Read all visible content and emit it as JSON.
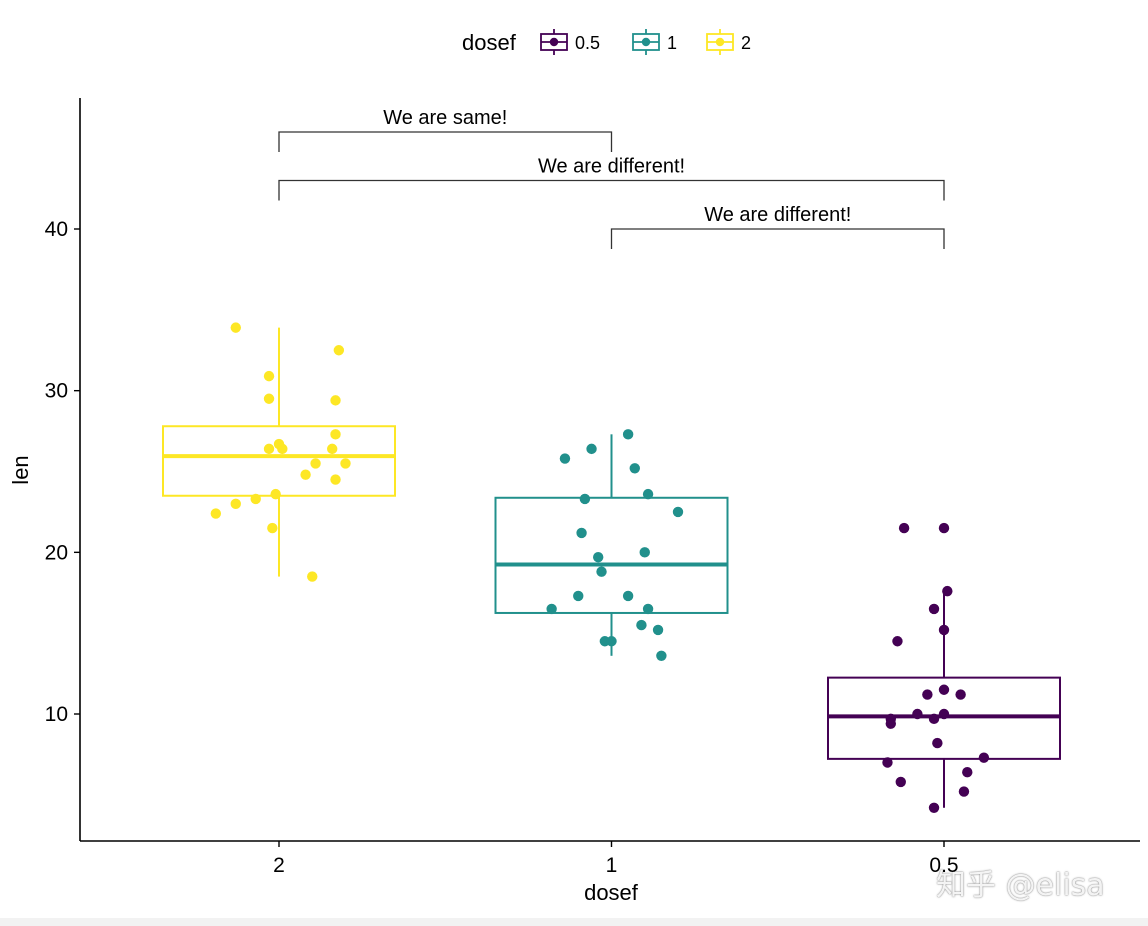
{
  "watermark": "知乎 @elisa",
  "chart_data": {
    "type": "box",
    "title": "",
    "xlabel": "dosef",
    "ylabel": "len",
    "categories": [
      "2",
      "1",
      "0.5"
    ],
    "ylim": [
      3,
      48
    ],
    "yticks": [
      10,
      20,
      30,
      40
    ],
    "grid": false,
    "legend": {
      "title": "dosef",
      "position": "top",
      "entries": [
        {
          "label": "0.5",
          "color": "#440154"
        },
        {
          "label": "1",
          "color": "#21908C"
        },
        {
          "label": "2",
          "color": "#FDE725"
        }
      ]
    },
    "boxes": [
      {
        "category": "2",
        "color": "#FDE725",
        "lower_whisker": 18.5,
        "q1": 23.5,
        "median": 25.95,
        "q3": 27.8,
        "upper_whisker": 33.9,
        "points": [
          [
            -0.13,
            33.9
          ],
          [
            -0.03,
            30.9
          ],
          [
            0.18,
            32.5
          ],
          [
            -0.03,
            29.5
          ],
          [
            0.17,
            29.4
          ],
          [
            0.17,
            27.3
          ],
          [
            0.0,
            26.7
          ],
          [
            -0.03,
            26.4
          ],
          [
            0.01,
            26.4
          ],
          [
            0.16,
            26.4
          ],
          [
            0.11,
            25.5
          ],
          [
            0.2,
            25.5
          ],
          [
            0.08,
            24.8
          ],
          [
            0.17,
            24.5
          ],
          [
            -0.01,
            23.6
          ],
          [
            -0.07,
            23.3
          ],
          [
            -0.13,
            23.0
          ],
          [
            -0.19,
            22.4
          ],
          [
            -0.02,
            21.5
          ],
          [
            0.1,
            18.5
          ]
        ]
      },
      {
        "category": "1",
        "color": "#21908C",
        "lower_whisker": 13.6,
        "q1": 16.25,
        "median": 19.25,
        "q3": 23.375,
        "upper_whisker": 27.3,
        "points": [
          [
            0.05,
            27.3
          ],
          [
            -0.06,
            26.4
          ],
          [
            -0.14,
            25.8
          ],
          [
            0.07,
            25.2
          ],
          [
            0.11,
            23.6
          ],
          [
            -0.08,
            23.3
          ],
          [
            0.2,
            22.5
          ],
          [
            -0.09,
            21.2
          ],
          [
            0.1,
            20.0
          ],
          [
            -0.04,
            19.7
          ],
          [
            -0.03,
            18.8
          ],
          [
            -0.1,
            17.3
          ],
          [
            0.05,
            17.3
          ],
          [
            -0.18,
            16.5
          ],
          [
            0.11,
            16.5
          ],
          [
            0.09,
            15.5
          ],
          [
            0.14,
            15.2
          ],
          [
            -0.02,
            14.5
          ],
          [
            0.0,
            14.5
          ],
          [
            0.15,
            13.6
          ]
        ]
      },
      {
        "category": "0.5",
        "color": "#440154",
        "lower_whisker": 4.2,
        "q1": 7.225,
        "median": 9.85,
        "q3": 12.25,
        "upper_whisker": 17.6,
        "points": [
          [
            -0.12,
            21.5
          ],
          [
            0.0,
            21.5
          ],
          [
            0.01,
            17.6
          ],
          [
            -0.03,
            16.5
          ],
          [
            0.0,
            15.2
          ],
          [
            -0.14,
            14.5
          ],
          [
            0.0,
            11.5
          ],
          [
            -0.05,
            11.2
          ],
          [
            0.05,
            11.2
          ],
          [
            -0.08,
            10.0
          ],
          [
            0.0,
            10.0
          ],
          [
            -0.16,
            9.7
          ],
          [
            -0.03,
            9.7
          ],
          [
            -0.16,
            9.4
          ],
          [
            -0.02,
            8.2
          ],
          [
            0.12,
            7.3
          ],
          [
            -0.17,
            7.0
          ],
          [
            0.07,
            6.4
          ],
          [
            -0.13,
            5.8
          ],
          [
            0.06,
            5.2
          ],
          [
            -0.03,
            4.2
          ]
        ]
      }
    ],
    "annotations": [
      {
        "label": "We are same!",
        "from": "2",
        "to": "1",
        "y": 46.0
      },
      {
        "label": "We are different!",
        "from": "2",
        "to": "0.5",
        "y": 43.0
      },
      {
        "label": "We are different!",
        "from": "1",
        "to": "0.5",
        "y": 40.0
      }
    ]
  }
}
